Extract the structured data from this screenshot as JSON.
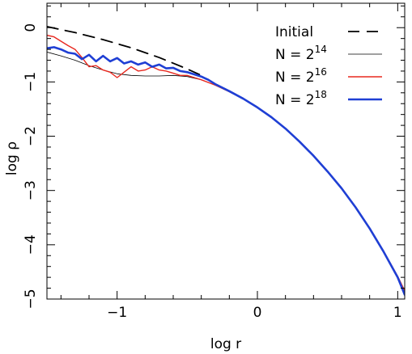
{
  "chart_data": {
    "type": "line",
    "xlabel": "log r",
    "ylabel": "log ρ",
    "xlim": [
      -1.5,
      1.05
    ],
    "ylim": [
      -5.0,
      0.45
    ],
    "x_ticks": [
      {
        "value": -1,
        "label": "−1"
      },
      {
        "value": 0,
        "label": "0"
      },
      {
        "value": 1,
        "label": "1"
      }
    ],
    "y_ticks": [
      {
        "value": 0,
        "label": "0"
      },
      {
        "value": -1,
        "label": "−1"
      },
      {
        "value": -2,
        "label": "−2"
      },
      {
        "value": -3,
        "label": "−3"
      },
      {
        "value": -4,
        "label": "−4"
      },
      {
        "value": -5,
        "label": "−5"
      }
    ],
    "legend_position": "top-right",
    "series": [
      {
        "name": "Initial",
        "legend_base": "Initial",
        "legend_sup": "",
        "color": "#000000",
        "dash": "14,9",
        "width": 1.8,
        "x": [
          -1.5,
          -1.3,
          -1.1,
          -0.9,
          -0.7,
          -0.5,
          -0.4
        ],
        "y": [
          0.02,
          -0.09,
          -0.22,
          -0.37,
          -0.55,
          -0.76,
          -0.88
        ]
      },
      {
        "name": "N = 2^14",
        "legend_base": "N = 2",
        "legend_sup": "14",
        "color": "#000000",
        "dash": "",
        "width": 0.8,
        "x": [
          -1.5,
          -1.4,
          -1.3,
          -1.2,
          -1.1,
          -1.0,
          -0.9,
          -0.8,
          -0.7,
          -0.6,
          -0.5,
          -0.4,
          -0.3,
          -0.2,
          -0.1,
          0.0,
          0.1,
          0.2,
          0.3,
          0.4,
          0.5,
          0.6,
          0.7,
          0.8,
          0.9,
          1.0,
          1.05
        ],
        "y": [
          -0.45,
          -0.52,
          -0.6,
          -0.7,
          -0.78,
          -0.85,
          -0.88,
          -0.89,
          -0.89,
          -0.88,
          -0.9,
          -0.96,
          -1.06,
          -1.18,
          -1.31,
          -1.47,
          -1.65,
          -1.86,
          -2.1,
          -2.36,
          -2.65,
          -2.96,
          -3.31,
          -3.69,
          -4.12,
          -4.58,
          -4.85
        ]
      },
      {
        "name": "N = 2^16",
        "legend_base": "N = 2",
        "legend_sup": "16",
        "color": "#e8281f",
        "dash": "",
        "width": 1.4,
        "x": [
          -1.5,
          -1.45,
          -1.4,
          -1.35,
          -1.3,
          -1.25,
          -1.2,
          -1.15,
          -1.1,
          -1.05,
          -1.0,
          -0.95,
          -0.9,
          -0.85,
          -0.8,
          -0.75,
          -0.7,
          -0.65,
          -0.6,
          -0.55,
          -0.5,
          -0.45,
          -0.4,
          -0.3,
          -0.2,
          -0.1,
          0.0,
          0.1,
          0.2,
          0.3,
          0.4,
          0.5,
          0.6,
          0.7,
          0.8,
          0.9,
          1.0,
          1.05
        ],
        "y": [
          -0.14,
          -0.17,
          -0.25,
          -0.33,
          -0.4,
          -0.55,
          -0.72,
          -0.7,
          -0.78,
          -0.82,
          -0.92,
          -0.82,
          -0.72,
          -0.8,
          -0.78,
          -0.72,
          -0.78,
          -0.8,
          -0.84,
          -0.88,
          -0.88,
          -0.92,
          -0.96,
          -1.06,
          -1.18,
          -1.31,
          -1.47,
          -1.65,
          -1.86,
          -2.1,
          -2.36,
          -2.65,
          -2.96,
          -3.31,
          -3.69,
          -4.12,
          -4.58,
          -4.85
        ]
      },
      {
        "name": "N = 2^18",
        "legend_base": "N = 2",
        "legend_sup": "18",
        "color": "#1f3fd4",
        "dash": "",
        "width": 2.6,
        "x": [
          -1.5,
          -1.45,
          -1.4,
          -1.35,
          -1.3,
          -1.25,
          -1.2,
          -1.15,
          -1.1,
          -1.05,
          -1.0,
          -0.95,
          -0.9,
          -0.85,
          -0.8,
          -0.75,
          -0.7,
          -0.65,
          -0.6,
          -0.55,
          -0.5,
          -0.45,
          -0.4,
          -0.35,
          -0.3,
          -0.2,
          -0.1,
          0.0,
          0.1,
          0.2,
          0.3,
          0.4,
          0.5,
          0.6,
          0.7,
          0.8,
          0.9,
          1.0,
          1.05
        ],
        "y": [
          -0.38,
          -0.36,
          -0.4,
          -0.46,
          -0.48,
          -0.58,
          -0.5,
          -0.62,
          -0.52,
          -0.62,
          -0.56,
          -0.66,
          -0.62,
          -0.68,
          -0.64,
          -0.72,
          -0.68,
          -0.75,
          -0.74,
          -0.8,
          -0.82,
          -0.86,
          -0.9,
          -0.96,
          -1.04,
          -1.17,
          -1.31,
          -1.47,
          -1.65,
          -1.86,
          -2.1,
          -2.36,
          -2.65,
          -2.96,
          -3.31,
          -3.7,
          -4.13,
          -4.6,
          -4.92
        ]
      }
    ]
  }
}
